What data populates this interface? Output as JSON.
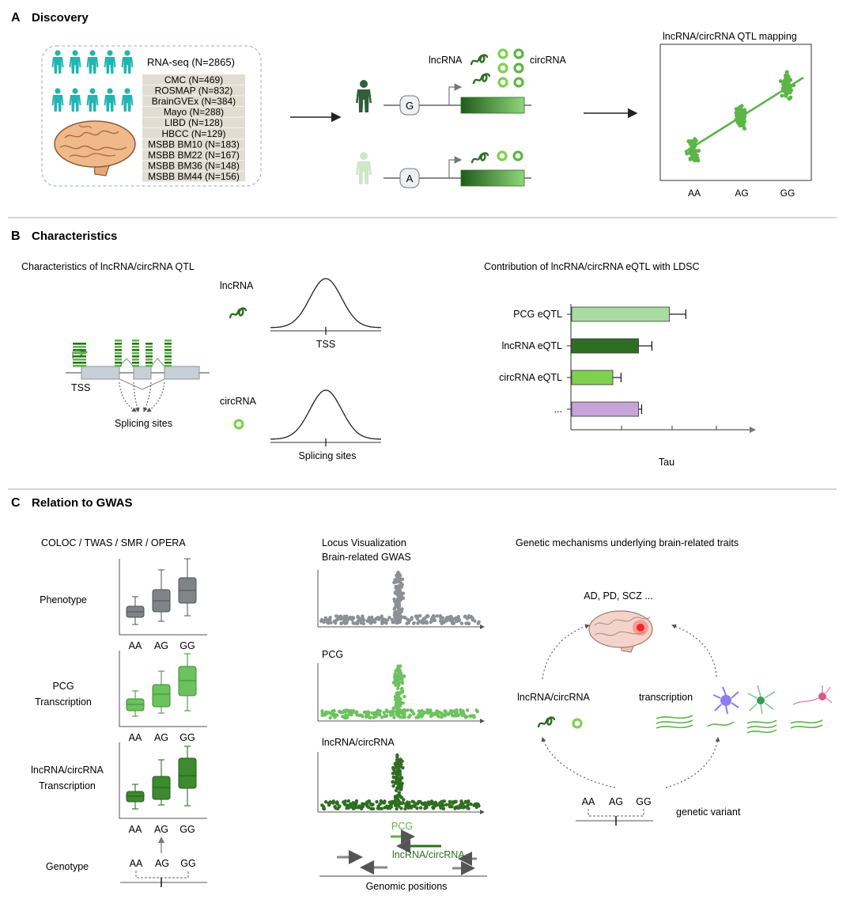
{
  "colors": {
    "teal": "#1fb5b3",
    "green_light": "#a8dca0",
    "green_mid": "#5cb547",
    "green_bright": "#7fd04f",
    "green_dark": "#2f6e22",
    "gray_box": "#7f8487",
    "purple": "#c7a3d8",
    "separator": "#c8c8c8"
  },
  "panelA": {
    "letter": "A",
    "title": "Discovery",
    "rnaseq_label": "RNA-seq (N=2865)",
    "cohorts": [
      "CMC (N=469)",
      "ROSMAP (N=832)",
      "BrainGVEx (N=384)",
      "Mayo (N=288)",
      "LIBD (N=128)",
      "HBCC (N=129)",
      "MSBB BM10 (N=183)",
      "MSBB BM22 (N=167)",
      "MSBB BM36 (N=148)",
      "MSBB BM44 (N=156)"
    ],
    "lncrna_label": "lncRNA",
    "circrna_label": "circRNA",
    "allele_top": "G",
    "allele_bottom": "A",
    "qtl_title": "lncRNA/circRNA QTL mapping",
    "genotypes": [
      "AA",
      "AG",
      "GG"
    ]
  },
  "panelB": {
    "letter": "B",
    "title": "Characteristics",
    "left_title": "Characteristics of lncRNA/circRNA QTL",
    "tss_label": "TSS",
    "splicing_label": "Splicing sites",
    "lncrna_label": "lncRNA",
    "circrna_label": "circRNA",
    "curve1_label": "TSS",
    "curve2_label": "Splicing sites",
    "right_title": "Contribution of lncRNA/circRNA eQTL with LDSC",
    "bars": [
      {
        "label": "PCG eQTL",
        "value": 0.95,
        "error": 0.16,
        "color": "#a8dca0"
      },
      {
        "label": "lncRNA eQTL",
        "value": 0.65,
        "error": 0.13,
        "color": "#2f6e22"
      },
      {
        "label": "circRNA eQTL",
        "value": 0.4,
        "error": 0.08,
        "color": "#7fd04f"
      },
      {
        "label": "...",
        "value": 0.65,
        "error": 0.03,
        "color": "#c7a3d8"
      }
    ],
    "xlabel": "Tau"
  },
  "panelC": {
    "letter": "C",
    "title": "Relation to GWAS",
    "methods": "COLOC / TWAS / SMR / OPERA",
    "rows": [
      "Phenotype",
      "PCG\nTranscription",
      "lncRNA/circRNA\nTranscription"
    ],
    "genotype_label": "Genotype",
    "genotypes": [
      "AA",
      "AG",
      "GG"
    ],
    "locus_title": "Locus Visualization",
    "gwas_label": "Brain-related GWAS",
    "pcg_label": "PCG",
    "lnc_label": "lncRNA/circRNA",
    "gene_pcg": "PCG",
    "gene_lnc": "lncRNA/circRNA",
    "genomic_positions": "Genomic positions",
    "mech_title": "Genetic mechanisms underlying brain-related traits",
    "traits": "AD, PD, SCZ ...",
    "mech_lnc": "lncRNA/circRNA",
    "mech_transcription": "transcription",
    "genetic_variant": "genetic variant"
  }
}
